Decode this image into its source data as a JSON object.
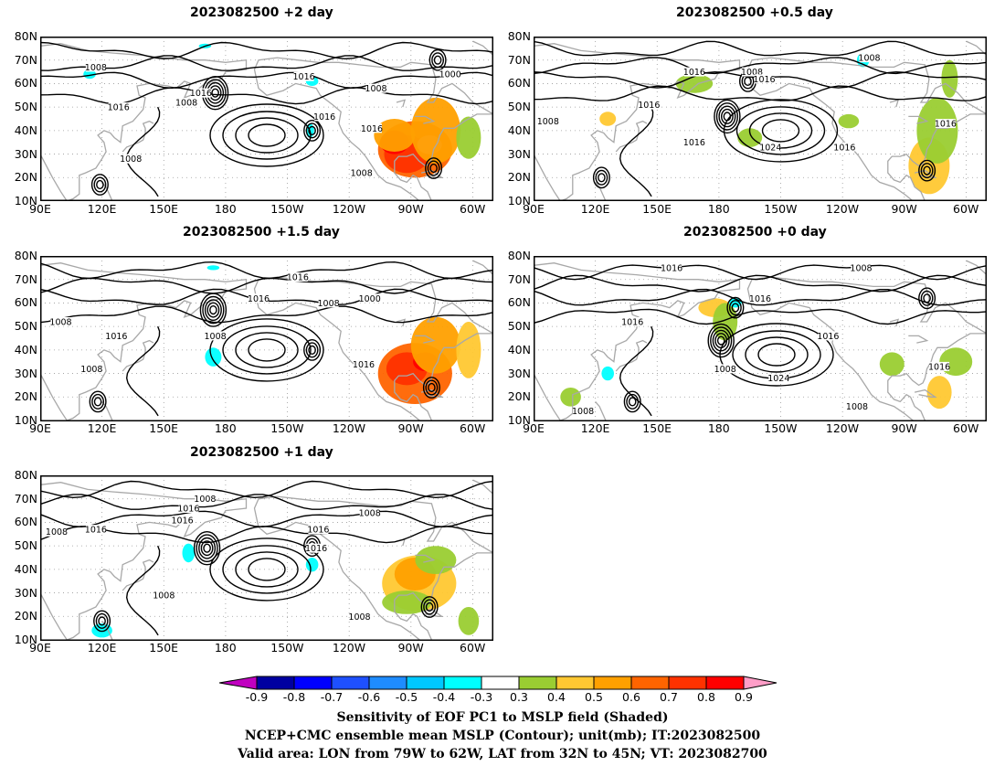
{
  "panels": [
    {
      "id": "p1",
      "title": "2023082500 +2 day",
      "labels": [
        {
          "t": "1008",
          "lon": 117,
          "lat": 67
        },
        {
          "t": "1016",
          "lon": 128,
          "lat": 50
        },
        {
          "t": "1008",
          "lon": 134,
          "lat": 28
        },
        {
          "t": "1016",
          "lon": 168,
          "lat": 56
        },
        {
          "t": "1008",
          "lon": 161,
          "lat": 52
        },
        {
          "t": "1016",
          "lon": 218,
          "lat": 63
        },
        {
          "t": "1016",
          "lon": 228,
          "lat": 46
        },
        {
          "t": "1008",
          "lon": 253,
          "lat": 58
        },
        {
          "t": "1000",
          "lon": 289,
          "lat": 64
        },
        {
          "t": "1016",
          "lon": 251,
          "lat": 41
        },
        {
          "t": "1008",
          "lon": 246,
          "lat": 22
        }
      ],
      "hot": [
        {
          "lon": 272,
          "lat": 32,
          "rx": 18,
          "ry": 12,
          "l": 3
        },
        {
          "lon": 268,
          "lat": 30,
          "rx": 11,
          "ry": 8,
          "l": 4
        },
        {
          "lon": 262,
          "lat": 35,
          "rx": 7,
          "ry": 5,
          "l": 5
        },
        {
          "lon": 279,
          "lat": 34,
          "rx": 6,
          "ry": 4,
          "l": 6
        },
        {
          "lon": 282,
          "lat": 40,
          "rx": 12,
          "ry": 14,
          "l": 2
        },
        {
          "lon": 262,
          "lat": 38,
          "rx": 10,
          "ry": 7,
          "l": 2
        },
        {
          "lon": 298,
          "lat": 37,
          "rx": 6,
          "ry": 9,
          "l": 0
        }
      ],
      "cold": [
        {
          "lon": 114,
          "lat": 64,
          "rx": 3,
          "ry": 2,
          "l": 0
        },
        {
          "lon": 222,
          "lat": 61,
          "rx": 3,
          "ry": 2,
          "l": 0
        },
        {
          "lon": 221,
          "lat": 40,
          "rx": 2,
          "ry": 3,
          "l": 0
        },
        {
          "lon": 170,
          "lat": 76,
          "rx": 3,
          "ry": 1,
          "l": 0
        }
      ],
      "lows": [
        {
          "lon": 175,
          "lat": 56
        },
        {
          "lon": 283,
          "lat": 70
        },
        {
          "lon": 222,
          "lat": 40
        },
        {
          "lon": 281,
          "lat": 24
        },
        {
          "lon": 119,
          "lat": 17
        }
      ],
      "highs": [
        {
          "lon": 200,
          "lat": 38
        }
      ]
    },
    {
      "id": "p2",
      "title": "2023082500 +0.5 day",
      "labels": [
        {
          "t": "1008",
          "lon": 97,
          "lat": 44
        },
        {
          "t": "1016",
          "lon": 168,
          "lat": 65
        },
        {
          "t": "1008",
          "lon": 196,
          "lat": 65
        },
        {
          "t": "1016",
          "lon": 202,
          "lat": 62
        },
        {
          "t": "1016",
          "lon": 146,
          "lat": 51
        },
        {
          "t": "1016",
          "lon": 168,
          "lat": 35
        },
        {
          "t": "1024",
          "lon": 205,
          "lat": 33
        },
        {
          "t": "1016",
          "lon": 241,
          "lat": 33
        },
        {
          "t": "1008",
          "lon": 253,
          "lat": 71
        },
        {
          "t": "1016",
          "lon": 290,
          "lat": 43
        }
      ],
      "hot": [
        {
          "lon": 282,
          "lat": 25,
          "rx": 10,
          "ry": 12,
          "l": 1
        },
        {
          "lon": 286,
          "lat": 40,
          "rx": 10,
          "ry": 14,
          "l": 0
        },
        {
          "lon": 168,
          "lat": 60,
          "rx": 9,
          "ry": 4,
          "l": 0
        },
        {
          "lon": 195,
          "lat": 37,
          "rx": 6,
          "ry": 4,
          "l": 0
        },
        {
          "lon": 126,
          "lat": 45,
          "rx": 4,
          "ry": 3,
          "l": 1
        },
        {
          "lon": 292,
          "lat": 62,
          "rx": 4,
          "ry": 8,
          "l": 0
        },
        {
          "lon": 243,
          "lat": 44,
          "rx": 5,
          "ry": 3,
          "l": 0
        }
      ],
      "cold": [
        {
          "lon": 250,
          "lat": 70,
          "rx": 3,
          "ry": 3,
          "l": 0
        }
      ],
      "lows": [
        {
          "lon": 184,
          "lat": 46
        },
        {
          "lon": 194,
          "lat": 61
        },
        {
          "lon": 281,
          "lat": 23
        },
        {
          "lon": 123,
          "lat": 20
        }
      ],
      "highs": [
        {
          "lon": 210,
          "lat": 40
        }
      ]
    },
    {
      "id": "p3",
      "title": "2023082500 +1.5 day",
      "labels": [
        {
          "t": "1008",
          "lon": 100,
          "lat": 52
        },
        {
          "t": "1016",
          "lon": 127,
          "lat": 46
        },
        {
          "t": "1008",
          "lon": 115,
          "lat": 32
        },
        {
          "t": "1008",
          "lon": 175,
          "lat": 46
        },
        {
          "t": "1016",
          "lon": 196,
          "lat": 62
        },
        {
          "t": "1016",
          "lon": 215,
          "lat": 71
        },
        {
          "t": "1008",
          "lon": 230,
          "lat": 60
        },
        {
          "t": "1000",
          "lon": 250,
          "lat": 62
        },
        {
          "t": "1016",
          "lon": 247,
          "lat": 34
        }
      ],
      "hot": [
        {
          "lon": 272,
          "lat": 30,
          "rx": 18,
          "ry": 13,
          "l": 3
        },
        {
          "lon": 268,
          "lat": 32,
          "rx": 10,
          "ry": 7,
          "l": 4
        },
        {
          "lon": 277,
          "lat": 35,
          "rx": 6,
          "ry": 4,
          "l": 5
        },
        {
          "lon": 282,
          "lat": 42,
          "rx": 12,
          "ry": 12,
          "l": 2
        },
        {
          "lon": 298,
          "lat": 40,
          "rx": 6,
          "ry": 12,
          "l": 1
        }
      ],
      "cold": [
        {
          "lon": 174,
          "lat": 37,
          "rx": 4,
          "ry": 4,
          "l": 0
        },
        {
          "lon": 174,
          "lat": 75,
          "rx": 3,
          "ry": 1,
          "l": 0
        }
      ],
      "lows": [
        {
          "lon": 174,
          "lat": 57
        },
        {
          "lon": 222,
          "lat": 40
        },
        {
          "lon": 280,
          "lat": 24
        },
        {
          "lon": 118,
          "lat": 18
        }
      ],
      "highs": [
        {
          "lon": 200,
          "lat": 40
        }
      ]
    },
    {
      "id": "p4",
      "title": "2023082500 +0 day",
      "labels": [
        {
          "t": "1016",
          "lon": 157,
          "lat": 75
        },
        {
          "t": "1008",
          "lon": 249,
          "lat": 75
        },
        {
          "t": "1016",
          "lon": 200,
          "lat": 62
        },
        {
          "t": "1016",
          "lon": 138,
          "lat": 52
        },
        {
          "t": "1008",
          "lon": 183,
          "lat": 32
        },
        {
          "t": "1024",
          "lon": 209,
          "lat": 28
        },
        {
          "t": "1016",
          "lon": 233,
          "lat": 46
        },
        {
          "t": "1016",
          "lon": 287,
          "lat": 33
        },
        {
          "t": "1008",
          "lon": 247,
          "lat": 16
        },
        {
          "t": "1008",
          "lon": 114,
          "lat": 14
        }
      ],
      "hot": [
        {
          "lon": 178,
          "lat": 58,
          "rx": 8,
          "ry": 4,
          "l": 1
        },
        {
          "lon": 183,
          "lat": 52,
          "rx": 6,
          "ry": 8,
          "l": 0
        },
        {
          "lon": 287,
          "lat": 22,
          "rx": 6,
          "ry": 7,
          "l": 1
        },
        {
          "lon": 295,
          "lat": 35,
          "rx": 8,
          "ry": 6,
          "l": 0
        },
        {
          "lon": 264,
          "lat": 34,
          "rx": 6,
          "ry": 5,
          "l": 0
        },
        {
          "lon": 108,
          "lat": 20,
          "rx": 5,
          "ry": 4,
          "l": 0
        }
      ],
      "cold": [
        {
          "lon": 188,
          "lat": 60,
          "rx": 3,
          "ry": 2,
          "l": 0
        },
        {
          "lon": 126,
          "lat": 30,
          "rx": 3,
          "ry": 3,
          "l": 0
        }
      ],
      "lows": [
        {
          "lon": 181,
          "lat": 44
        },
        {
          "lon": 188,
          "lat": 58
        },
        {
          "lon": 138,
          "lat": 18
        },
        {
          "lon": 281,
          "lat": 62
        }
      ],
      "highs": [
        {
          "lon": 208,
          "lat": 38
        }
      ]
    },
    {
      "id": "p5",
      "title": "2023082500 +1 day",
      "labels": [
        {
          "t": "1008",
          "lon": 170,
          "lat": 70
        },
        {
          "t": "1016",
          "lon": 162,
          "lat": 66
        },
        {
          "t": "1016",
          "lon": 159,
          "lat": 61
        },
        {
          "t": "1008",
          "lon": 98,
          "lat": 56
        },
        {
          "t": "1016",
          "lon": 117,
          "lat": 57
        },
        {
          "t": "1008",
          "lon": 250,
          "lat": 64
        },
        {
          "t": "1016",
          "lon": 225,
          "lat": 57
        },
        {
          "t": "1016",
          "lon": 224,
          "lat": 49
        },
        {
          "t": "1008",
          "lon": 150,
          "lat": 29
        },
        {
          "t": "1008",
          "lon": 245,
          "lat": 20
        }
      ],
      "hot": [
        {
          "lon": 274,
          "lat": 34,
          "rx": 18,
          "ry": 12,
          "l": 1
        },
        {
          "lon": 272,
          "lat": 38,
          "rx": 10,
          "ry": 7,
          "l": 2
        },
        {
          "lon": 282,
          "lat": 44,
          "rx": 10,
          "ry": 6,
          "l": 0
        },
        {
          "lon": 268,
          "lat": 26,
          "rx": 12,
          "ry": 5,
          "l": 0
        },
        {
          "lon": 298,
          "lat": 18,
          "rx": 5,
          "ry": 6,
          "l": 0
        }
      ],
      "cold": [
        {
          "lon": 120,
          "lat": 14,
          "rx": 5,
          "ry": 3,
          "l": 0
        },
        {
          "lon": 162,
          "lat": 47,
          "rx": 3,
          "ry": 4,
          "l": 0
        },
        {
          "lon": 222,
          "lat": 42,
          "rx": 3,
          "ry": 3,
          "l": 0
        }
      ],
      "lows": [
        {
          "lon": 171,
          "lat": 49
        },
        {
          "lon": 222,
          "lat": 50
        },
        {
          "lon": 279,
          "lat": 24
        },
        {
          "lon": 120,
          "lat": 18
        }
      ],
      "highs": [
        {
          "lon": 200,
          "lat": 40
        }
      ]
    }
  ],
  "y_ticks": [
    "80N",
    "70N",
    "60N",
    "50N",
    "40N",
    "30N",
    "20N",
    "10N"
  ],
  "x_ticks": [
    "90E",
    "120E",
    "150E",
    "180",
    "150W",
    "120W",
    "90W",
    "60W"
  ],
  "colorbar": {
    "labels": [
      "-0.9",
      "-0.8",
      "-0.7",
      "-0.6",
      "-0.5",
      "-0.4",
      "-0.3",
      "0.3",
      "0.4",
      "0.5",
      "0.6",
      "0.7",
      "0.8",
      "0.9"
    ],
    "colors": [
      "#c000c0",
      "#0000a0",
      "#0000ff",
      "#1e50ff",
      "#1e8cff",
      "#00c8ff",
      "#00ffff",
      "#ffffff",
      "#9acd32",
      "#ffc832",
      "#ffa000",
      "#ff6400",
      "#ff3200",
      "#ff0000",
      "#ff9ec8"
    ]
  },
  "captions": {
    "line1": "Sensitivity of EOF PC1 to MSLP field (Shaded)",
    "line2": "NCEP+CMC ensemble mean MSLP (Contour); unit(mb); IT:2023082500",
    "line3": "Valid area: LON from 79W to 62W, LAT from 32N to 45N; VT: 2023082700"
  }
}
